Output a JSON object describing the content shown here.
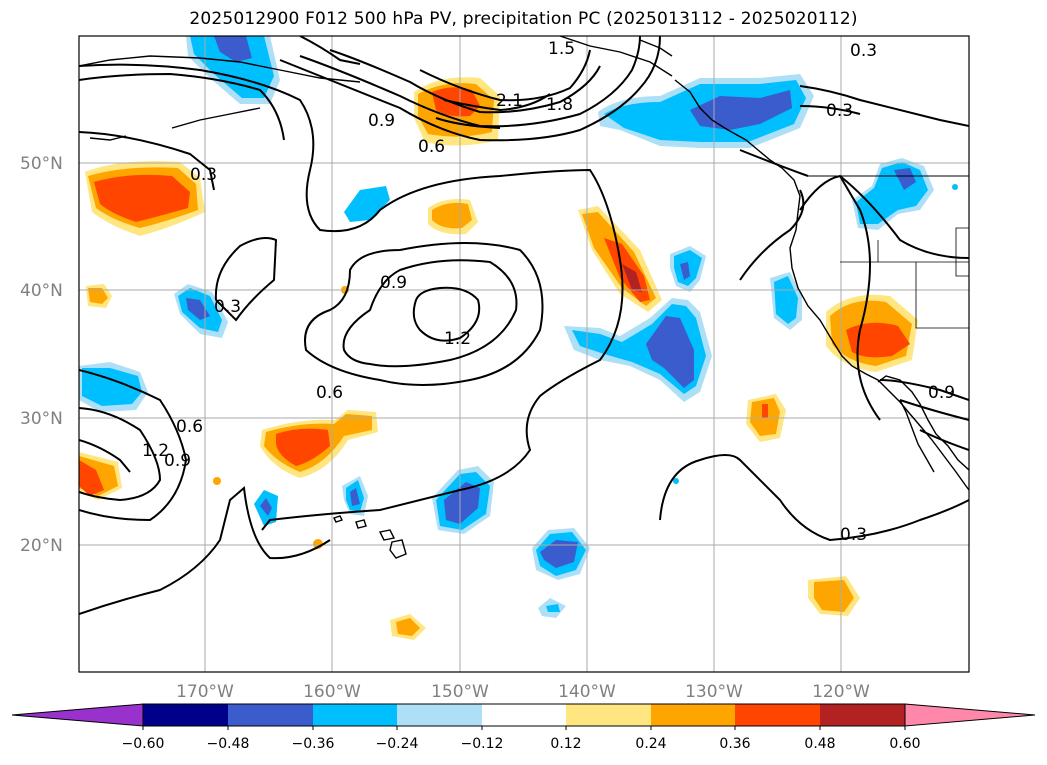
{
  "title": "2025012900 F012 500 hPa PV, precipitation PC (2025013112 - 2025020112)",
  "map": {
    "lat_labels": [
      "50°N",
      "40°N",
      "30°N",
      "20°N"
    ],
    "lon_labels": [
      "170°W",
      "160°W",
      "150°W",
      "140°W",
      "130°W",
      "120°W"
    ],
    "contour_labels": [
      "0.3",
      "0.6",
      "0.9",
      "1.2",
      "1.5",
      "1.8",
      "2.1",
      "0.3",
      "0.3",
      "0.9",
      "1.2",
      "0.6",
      "0.3",
      "0.3",
      "0.6",
      "0.9",
      "1.2",
      "0.3",
      "0.6",
      "0.9"
    ]
  },
  "colorbar": {
    "tick_labels": [
      "−0.60",
      "−0.48",
      "−0.36",
      "−0.24",
      "−0.12",
      "0.12",
      "0.24",
      "0.36",
      "0.48",
      "0.60"
    ],
    "colors": [
      "#9932CC",
      "#00008B",
      "#3A5CCC",
      "#00BFFF",
      "#ADDFF7",
      "#FFFFFF",
      "#FFE680",
      "#FFA500",
      "#FF4500",
      "#B22222",
      "#FF88AA"
    ]
  },
  "legend_colors": {
    "neg_strong": "#3A5CCC",
    "neg_mid": "#00BFFF",
    "neg_weak": "#ADDFF7",
    "pos_weak": "#FFE680",
    "pos_mid": "#FFA500",
    "pos_strong": "#FF4500",
    "pos_max": "#B22222"
  }
}
